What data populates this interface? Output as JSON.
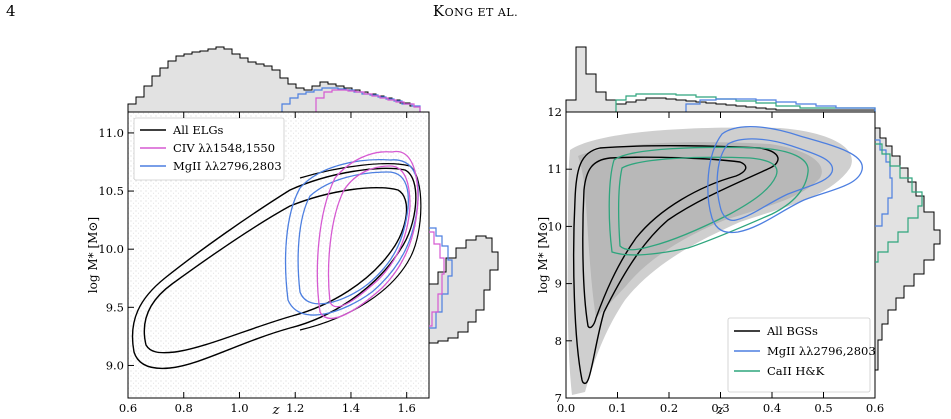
{
  "page_number": "4",
  "running_head": "Kong et al.",
  "chart_data": [
    {
      "type": "contour",
      "xlabel": "z",
      "ylabel": "log M* [M⊙]",
      "xlim": [
        0.6,
        1.68
      ],
      "ylim": [
        8.72,
        11.18
      ],
      "xticks": [
        "0.6",
        "0.8",
        "1.0",
        "1.2",
        "1.4",
        "1.6"
      ],
      "yticks": [
        "9.0",
        "9.5",
        "10.0",
        "10.5",
        "11.0"
      ],
      "legend_position": "upper-left",
      "series": [
        {
          "name": "All ELGs",
          "color": "#000000"
        },
        {
          "name": "CIV λλ1548,1550",
          "color": "#d65ad2"
        },
        {
          "name": "MgII λλ2796,2803",
          "color": "#4d7fe0"
        }
      ],
      "marginal_x": "histogram of z (top)",
      "marginal_y": "histogram of log M* (right)"
    },
    {
      "type": "contour",
      "xlabel": "z",
      "ylabel": "log M* [M⊙]",
      "xlim": [
        0.0,
        0.6
      ],
      "ylim": [
        7.0,
        12.0
      ],
      "xticks": [
        "0.0",
        "0.1",
        "0.2",
        "0.3",
        "0.4",
        "0.5",
        "0.6"
      ],
      "yticks": [
        "7",
        "8",
        "9",
        "10",
        "11",
        "12"
      ],
      "legend_position": "lower-right",
      "series": [
        {
          "name": "All BGSs",
          "color": "#000000"
        },
        {
          "name": "MgII λλ2796,2803",
          "color": "#4d7fe0"
        },
        {
          "name": "CaII H&K",
          "color": "#2ea57d"
        }
      ],
      "marginal_x": "histogram of z (top)",
      "marginal_y": "histogram of log M* (right)"
    }
  ]
}
